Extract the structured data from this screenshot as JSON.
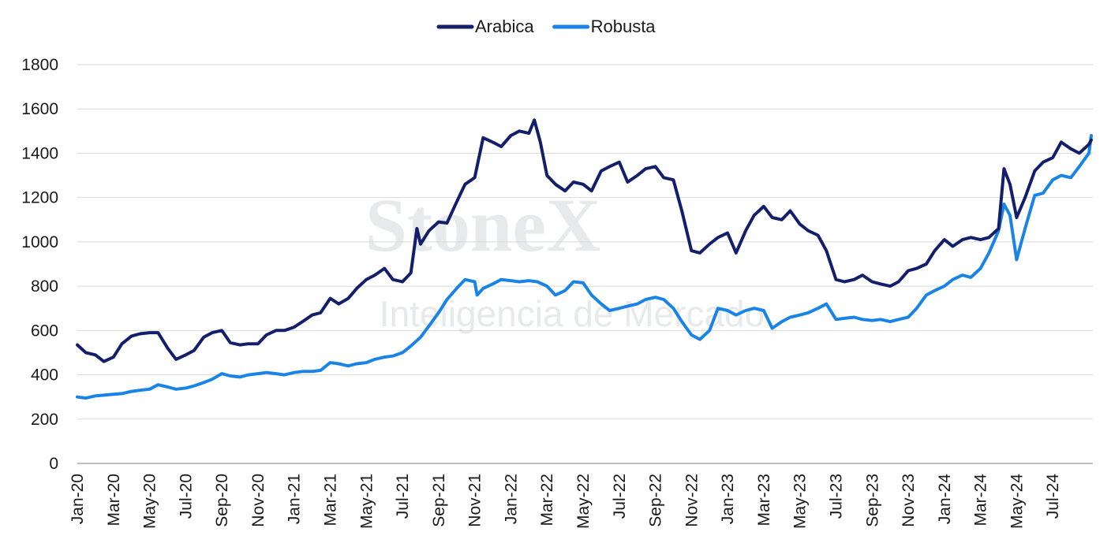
{
  "watermark": {
    "brand": "StoneX",
    "subtitle": "Inteligencia de Mercado"
  },
  "colors": {
    "arabica": "#131f6b",
    "robusta": "#1a84e6",
    "grid": "#d9d9d9",
    "axis": "#808080"
  },
  "chart_data": {
    "type": "line",
    "title": "",
    "xlabel": "",
    "ylabel": "",
    "ylim": [
      0,
      1800
    ],
    "yticks": [
      "0",
      "200",
      "400",
      "600",
      "800",
      "1000",
      "1200",
      "1400",
      "1600",
      "1800"
    ],
    "xticks": [
      "Jan-20",
      "Mar-20",
      "May-20",
      "Jul-20",
      "Sep-20",
      "Nov-20",
      "Jan-21",
      "Mar-21",
      "May-21",
      "Jul-21",
      "Sep-21",
      "Nov-21",
      "Jan-22",
      "Mar-22",
      "May-22",
      "Jul-22",
      "Sep-22",
      "Nov-22",
      "Jan-23",
      "Mar-23",
      "May-23",
      "Jul-23",
      "Sep-23",
      "Nov-23",
      "Jan-24",
      "Mar-24",
      "May-24",
      "Jul-24"
    ],
    "x_range": [
      "2020-01",
      "2024-09"
    ],
    "grid": true,
    "legend_position": "top",
    "series": [
      {
        "name": "Arabica",
        "color": "#131f6b",
        "points": [
          [
            "2020-01",
            535
          ],
          [
            "2020-01-15",
            500
          ],
          [
            "2020-02",
            490
          ],
          [
            "2020-02-15",
            460
          ],
          [
            "2020-03",
            480
          ],
          [
            "2020-03-15",
            540
          ],
          [
            "2020-04",
            575
          ],
          [
            "2020-04-15",
            585
          ],
          [
            "2020-05",
            590
          ],
          [
            "2020-05-15",
            590
          ],
          [
            "2020-06",
            520
          ],
          [
            "2020-06-15",
            470
          ],
          [
            "2020-07",
            490
          ],
          [
            "2020-07-15",
            510
          ],
          [
            "2020-08",
            570
          ],
          [
            "2020-08-15",
            590
          ],
          [
            "2020-09",
            600
          ],
          [
            "2020-09-15",
            545
          ],
          [
            "2020-10",
            535
          ],
          [
            "2020-10-15",
            540
          ],
          [
            "2020-11",
            540
          ],
          [
            "2020-11-15",
            580
          ],
          [
            "2020-12",
            600
          ],
          [
            "2020-12-15",
            600
          ],
          [
            "2021-01",
            615
          ],
          [
            "2021-01-15",
            640
          ],
          [
            "2021-02",
            670
          ],
          [
            "2021-02-15",
            680
          ],
          [
            "2021-03",
            745
          ],
          [
            "2021-03-15",
            720
          ],
          [
            "2021-04",
            745
          ],
          [
            "2021-04-15",
            790
          ],
          [
            "2021-05",
            830
          ],
          [
            "2021-05-15",
            850
          ],
          [
            "2021-06",
            880
          ],
          [
            "2021-06-15",
            830
          ],
          [
            "2021-07",
            820
          ],
          [
            "2021-07-15",
            860
          ],
          [
            "2021-07-25",
            1060
          ],
          [
            "2021-08",
            990
          ],
          [
            "2021-08-15",
            1050
          ],
          [
            "2021-09",
            1090
          ],
          [
            "2021-09-15",
            1085
          ],
          [
            "2021-10",
            1180
          ],
          [
            "2021-10-15",
            1260
          ],
          [
            "2021-11",
            1290
          ],
          [
            "2021-11-15",
            1470
          ],
          [
            "2021-12",
            1450
          ],
          [
            "2021-12-15",
            1430
          ],
          [
            "2022-01",
            1480
          ],
          [
            "2022-01-15",
            1500
          ],
          [
            "2022-02",
            1490
          ],
          [
            "2022-02-10",
            1550
          ],
          [
            "2022-02-20",
            1450
          ],
          [
            "2022-03",
            1300
          ],
          [
            "2022-03-15",
            1260
          ],
          [
            "2022-04",
            1230
          ],
          [
            "2022-04-15",
            1270
          ],
          [
            "2022-05",
            1260
          ],
          [
            "2022-05-15",
            1230
          ],
          [
            "2022-06",
            1320
          ],
          [
            "2022-06-15",
            1340
          ],
          [
            "2022-07",
            1360
          ],
          [
            "2022-07-15",
            1270
          ],
          [
            "2022-08",
            1300
          ],
          [
            "2022-08-15",
            1330
          ],
          [
            "2022-09",
            1340
          ],
          [
            "2022-09-15",
            1290
          ],
          [
            "2022-10",
            1280
          ],
          [
            "2022-10-15",
            1140
          ],
          [
            "2022-11",
            960
          ],
          [
            "2022-11-15",
            950
          ],
          [
            "2022-12",
            990
          ],
          [
            "2022-12-15",
            1020
          ],
          [
            "2023-01",
            1040
          ],
          [
            "2023-01-15",
            950
          ],
          [
            "2023-02",
            1050
          ],
          [
            "2023-02-15",
            1120
          ],
          [
            "2023-03",
            1160
          ],
          [
            "2023-03-15",
            1110
          ],
          [
            "2023-04",
            1100
          ],
          [
            "2023-04-15",
            1140
          ],
          [
            "2023-05",
            1080
          ],
          [
            "2023-05-15",
            1050
          ],
          [
            "2023-06",
            1030
          ],
          [
            "2023-06-15",
            960
          ],
          [
            "2023-07",
            830
          ],
          [
            "2023-07-15",
            820
          ],
          [
            "2023-08",
            830
          ],
          [
            "2023-08-15",
            850
          ],
          [
            "2023-09",
            820
          ],
          [
            "2023-09-15",
            810
          ],
          [
            "2023-10",
            800
          ],
          [
            "2023-10-15",
            820
          ],
          [
            "2023-11",
            870
          ],
          [
            "2023-11-15",
            880
          ],
          [
            "2023-12",
            900
          ],
          [
            "2023-12-15",
            960
          ],
          [
            "2024-01",
            1010
          ],
          [
            "2024-01-15",
            980
          ],
          [
            "2024-02",
            1010
          ],
          [
            "2024-02-15",
            1020
          ],
          [
            "2024-03",
            1010
          ],
          [
            "2024-03-15",
            1020
          ],
          [
            "2024-04",
            1060
          ],
          [
            "2024-04-10",
            1330
          ],
          [
            "2024-04-20",
            1260
          ],
          [
            "2024-05",
            1110
          ],
          [
            "2024-05-15",
            1200
          ],
          [
            "2024-06",
            1320
          ],
          [
            "2024-06-15",
            1360
          ],
          [
            "2024-07",
            1380
          ],
          [
            "2024-07-15",
            1450
          ],
          [
            "2024-08",
            1420
          ],
          [
            "2024-08-15",
            1400
          ],
          [
            "2024-09",
            1440
          ],
          [
            "2024-09-05",
            1460
          ]
        ]
      },
      {
        "name": "Robusta",
        "color": "#1a84e6",
        "points": [
          [
            "2020-01",
            300
          ],
          [
            "2020-01-15",
            295
          ],
          [
            "2020-02",
            305
          ],
          [
            "2020-02-15",
            308
          ],
          [
            "2020-03",
            312
          ],
          [
            "2020-03-15",
            315
          ],
          [
            "2020-04",
            325
          ],
          [
            "2020-04-15",
            330
          ],
          [
            "2020-05",
            335
          ],
          [
            "2020-05-15",
            355
          ],
          [
            "2020-06",
            345
          ],
          [
            "2020-06-15",
            335
          ],
          [
            "2020-07",
            340
          ],
          [
            "2020-07-15",
            350
          ],
          [
            "2020-08",
            365
          ],
          [
            "2020-08-15",
            380
          ],
          [
            "2020-09",
            405
          ],
          [
            "2020-09-15",
            395
          ],
          [
            "2020-10",
            390
          ],
          [
            "2020-10-15",
            400
          ],
          [
            "2020-11",
            405
          ],
          [
            "2020-11-15",
            410
          ],
          [
            "2020-12",
            405
          ],
          [
            "2020-12-15",
            400
          ],
          [
            "2021-01",
            410
          ],
          [
            "2021-01-15",
            415
          ],
          [
            "2021-02",
            415
          ],
          [
            "2021-02-15",
            420
          ],
          [
            "2021-03",
            455
          ],
          [
            "2021-03-15",
            450
          ],
          [
            "2021-04",
            440
          ],
          [
            "2021-04-15",
            450
          ],
          [
            "2021-05",
            455
          ],
          [
            "2021-05-15",
            470
          ],
          [
            "2021-06",
            480
          ],
          [
            "2021-06-15",
            485
          ],
          [
            "2021-07",
            500
          ],
          [
            "2021-07-15",
            530
          ],
          [
            "2021-08",
            570
          ],
          [
            "2021-08-15",
            620
          ],
          [
            "2021-09",
            680
          ],
          [
            "2021-09-15",
            740
          ],
          [
            "2021-10",
            790
          ],
          [
            "2021-10-15",
            830
          ],
          [
            "2021-11",
            820
          ],
          [
            "2021-11-05",
            760
          ],
          [
            "2021-11-15",
            790
          ],
          [
            "2021-12",
            810
          ],
          [
            "2021-12-15",
            830
          ],
          [
            "2022-01",
            825
          ],
          [
            "2022-01-15",
            820
          ],
          [
            "2022-02",
            825
          ],
          [
            "2022-02-15",
            820
          ],
          [
            "2022-03",
            800
          ],
          [
            "2022-03-15",
            760
          ],
          [
            "2022-04",
            780
          ],
          [
            "2022-04-15",
            820
          ],
          [
            "2022-05",
            815
          ],
          [
            "2022-05-15",
            760
          ],
          [
            "2022-06",
            720
          ],
          [
            "2022-06-15",
            690
          ],
          [
            "2022-07",
            700
          ],
          [
            "2022-07-15",
            710
          ],
          [
            "2022-08",
            720
          ],
          [
            "2022-08-15",
            740
          ],
          [
            "2022-09",
            750
          ],
          [
            "2022-09-15",
            740
          ],
          [
            "2022-10",
            700
          ],
          [
            "2022-10-15",
            640
          ],
          [
            "2022-11",
            580
          ],
          [
            "2022-11-15",
            560
          ],
          [
            "2022-12",
            600
          ],
          [
            "2022-12-15",
            700
          ],
          [
            "2023-01",
            690
          ],
          [
            "2023-01-15",
            670
          ],
          [
            "2023-02",
            690
          ],
          [
            "2023-02-15",
            700
          ],
          [
            "2023-03",
            690
          ],
          [
            "2023-03-15",
            610
          ],
          [
            "2023-04",
            640
          ],
          [
            "2023-04-15",
            660
          ],
          [
            "2023-05",
            670
          ],
          [
            "2023-05-15",
            680
          ],
          [
            "2023-06",
            700
          ],
          [
            "2023-06-15",
            720
          ],
          [
            "2023-07",
            650
          ],
          [
            "2023-07-15",
            655
          ],
          [
            "2023-08",
            660
          ],
          [
            "2023-08-15",
            650
          ],
          [
            "2023-09",
            645
          ],
          [
            "2023-09-15",
            650
          ],
          [
            "2023-10",
            640
          ],
          [
            "2023-10-15",
            650
          ],
          [
            "2023-11",
            660
          ],
          [
            "2023-11-15",
            700
          ],
          [
            "2023-12",
            760
          ],
          [
            "2023-12-15",
            780
          ],
          [
            "2024-01",
            800
          ],
          [
            "2024-01-15",
            830
          ],
          [
            "2024-02",
            850
          ],
          [
            "2024-02-15",
            840
          ],
          [
            "2024-03",
            880
          ],
          [
            "2024-03-15",
            950
          ],
          [
            "2024-04",
            1050
          ],
          [
            "2024-04-10",
            1170
          ],
          [
            "2024-04-20",
            1120
          ],
          [
            "2024-05",
            920
          ],
          [
            "2024-05-15",
            1060
          ],
          [
            "2024-06",
            1210
          ],
          [
            "2024-06-15",
            1220
          ],
          [
            "2024-07",
            1280
          ],
          [
            "2024-07-15",
            1300
          ],
          [
            "2024-08",
            1290
          ],
          [
            "2024-08-15",
            1340
          ],
          [
            "2024-09",
            1400
          ],
          [
            "2024-09-05",
            1480
          ]
        ]
      }
    ]
  }
}
